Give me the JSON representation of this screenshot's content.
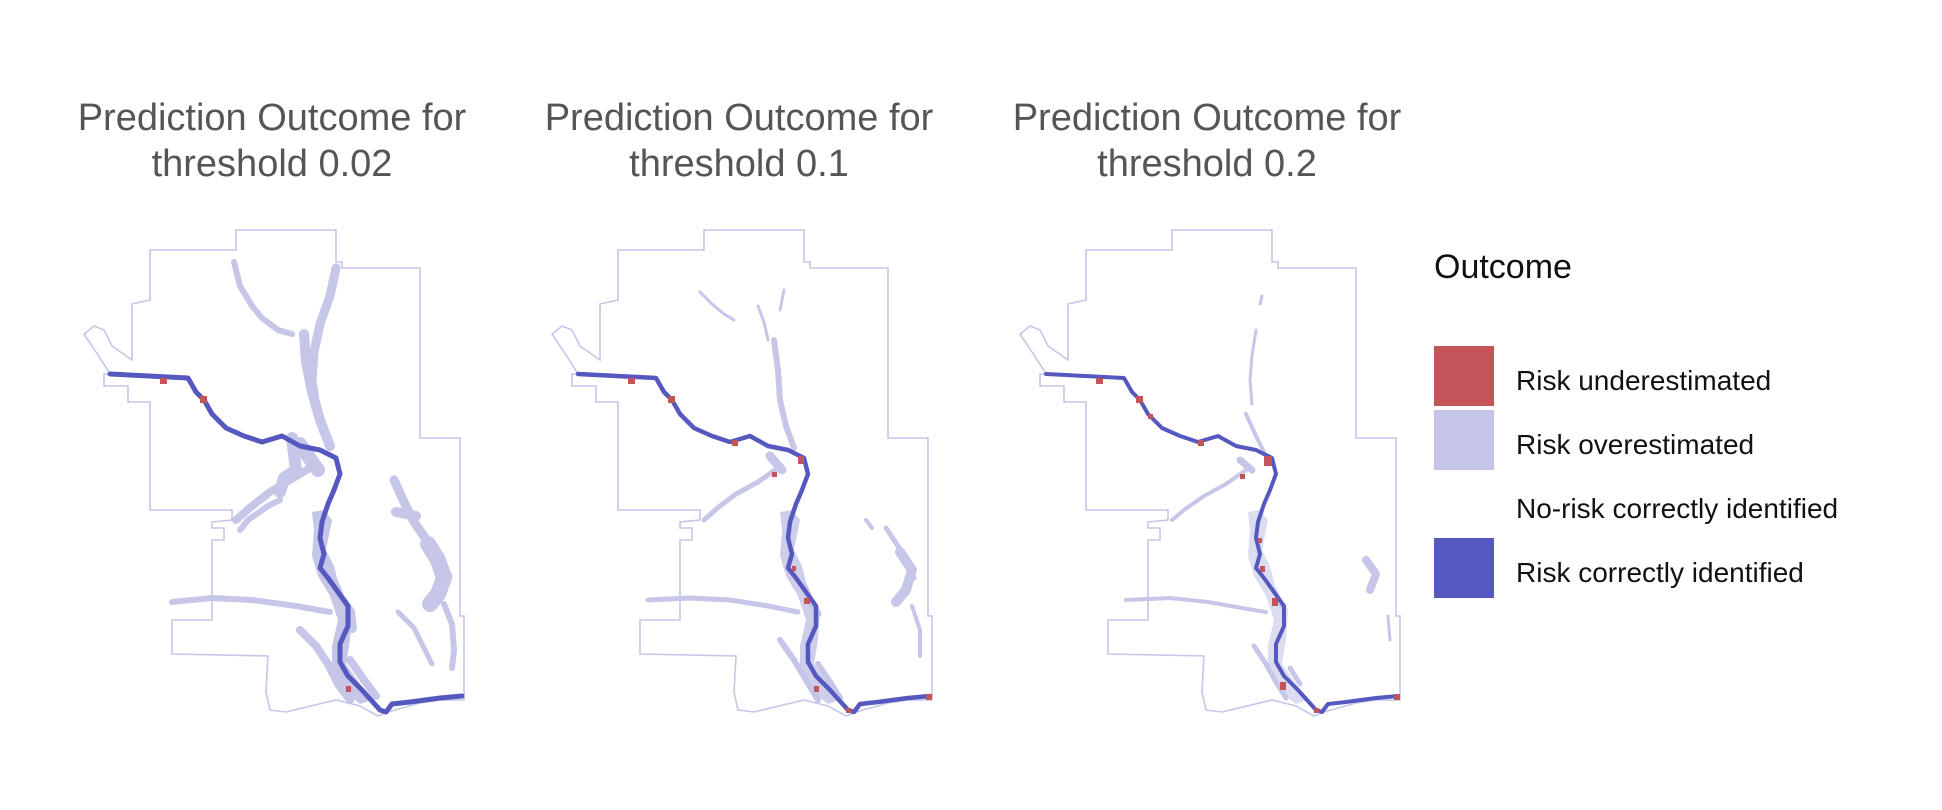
{
  "panels": [
    {
      "title_line1": "Prediction Outcome for",
      "title_line2": "threshold 0.02"
    },
    {
      "title_line1": "Prediction Outcome for",
      "title_line2": "threshold 0.1"
    },
    {
      "title_line1": "Prediction Outcome for",
      "title_line2": "threshold 0.2"
    }
  ],
  "legend": {
    "title": "Outcome",
    "items": [
      {
        "label": "Risk underestimated",
        "color": "#c2545a"
      },
      {
        "label": "Risk overestimated",
        "color": "#c5c6e8"
      },
      {
        "label": "No-risk correctly identified",
        "color": "#ffffff"
      },
      {
        "label": "Risk correctly identified",
        "color": "#5558bf"
      }
    ]
  },
  "colors": {
    "boundary": "#c5c6e8",
    "river": "#5558bf",
    "overestimated": "#c5c6e8",
    "underestimated": "#c2545a"
  }
}
